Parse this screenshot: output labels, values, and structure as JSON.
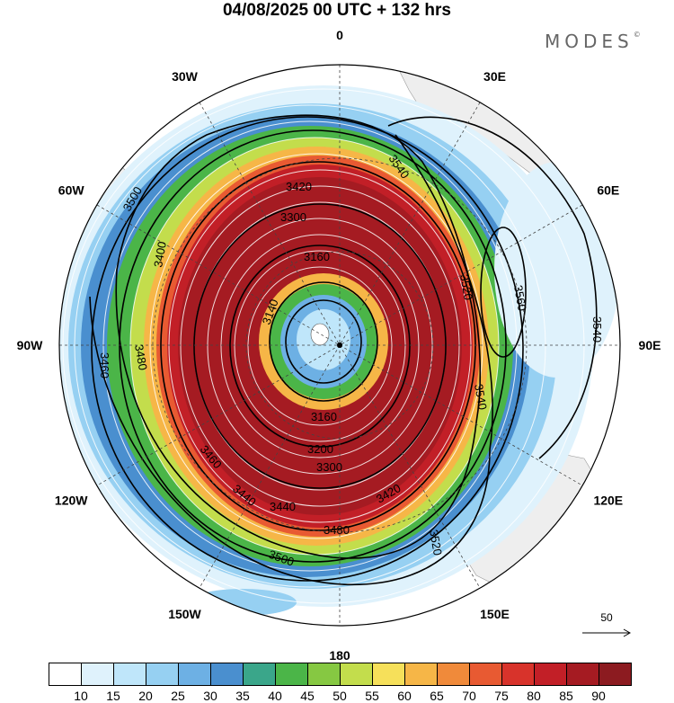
{
  "title": "04/08/2025  00 UTC  + 132 hrs",
  "brand": "MODES",
  "brand_mark": "©",
  "longitude_labels": [
    {
      "text": "0",
      "lon": 0
    },
    {
      "text": "30E",
      "lon": 30
    },
    {
      "text": "60E",
      "lon": 60
    },
    {
      "text": "90E",
      "lon": 90
    },
    {
      "text": "120E",
      "lon": 120
    },
    {
      "text": "150E",
      "lon": 150
    },
    {
      "text": "180",
      "lon": 180
    },
    {
      "text": "150W",
      "lon": -150
    },
    {
      "text": "120W",
      "lon": -120
    },
    {
      "text": "90W",
      "lon": -90
    },
    {
      "text": "60W",
      "lon": -60
    },
    {
      "text": "30W",
      "lon": -30
    }
  ],
  "contour_labels": [
    "3540",
    "3560",
    "3540",
    "3520",
    "3500",
    "3480",
    "3460",
    "3440",
    "3420",
    "3400",
    "3300",
    "3160",
    "3140",
    "3160",
    "3200",
    "3300",
    "3420",
    "3440",
    "3460",
    "3480",
    "3500",
    "3520",
    "3540"
  ],
  "colorbar": {
    "labels": [
      "10",
      "15",
      "20",
      "25",
      "30",
      "35",
      "40",
      "45",
      "50",
      "55",
      "60",
      "65",
      "70",
      "75",
      "80",
      "85",
      "90"
    ],
    "colors": [
      "#ffffff",
      "#dff2fc",
      "#bfe6fa",
      "#96d0f2",
      "#6db0e4",
      "#4a8fcf",
      "#3aa68a",
      "#4bb548",
      "#86c842",
      "#c3dd4c",
      "#f6e05a",
      "#f6b647",
      "#f08a3a",
      "#e85a32",
      "#d8332b",
      "#c21f27",
      "#a51b22",
      "#8c1b20"
    ]
  },
  "reference_vector": {
    "label": "50"
  }
}
